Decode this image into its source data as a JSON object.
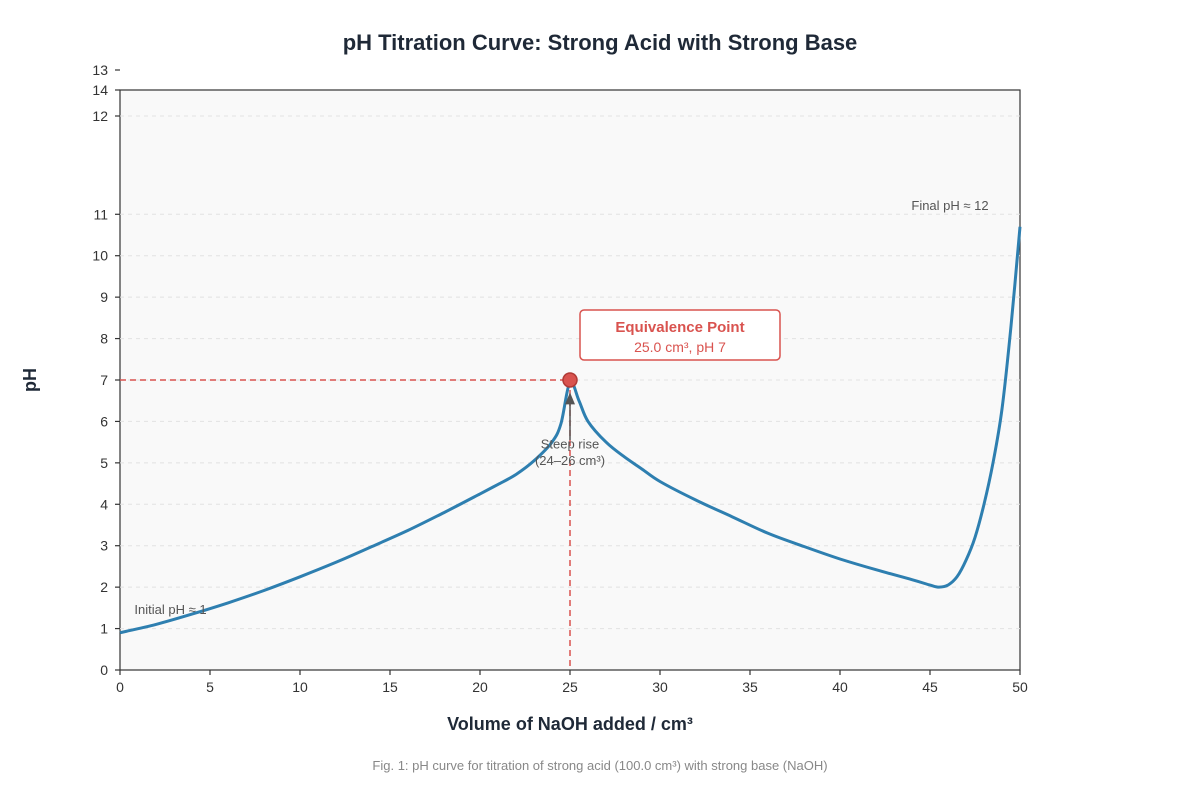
{
  "chart_data": {
    "type": "line",
    "title": "pH Titration Curve: Strong Acid with Strong Base",
    "xlabel": "Volume of NaOH added / cm³",
    "ylabel": "pH",
    "xlim": [
      0,
      50
    ],
    "ylim": [
      0,
      14
    ],
    "x_ticks": [
      0,
      5,
      10,
      15,
      20,
      25,
      30,
      35,
      40,
      45,
      50
    ],
    "y_ticks": [
      0,
      1,
      2,
      3,
      4,
      5,
      6,
      7,
      8,
      9,
      10,
      11,
      12,
      13,
      14
    ],
    "grid": true,
    "series": [
      {
        "color": "#2e7fb0",
        "points": [
          [
            0,
            0.9
          ],
          [
            2,
            1.1
          ],
          [
            4,
            1.35
          ],
          [
            6,
            1.62
          ],
          [
            8,
            1.92
          ],
          [
            10,
            2.25
          ],
          [
            12,
            2.6
          ],
          [
            14,
            2.98
          ],
          [
            16,
            3.37
          ],
          [
            18,
            3.8
          ],
          [
            20,
            4.25
          ],
          [
            21,
            4.48
          ],
          [
            22,
            4.72
          ],
          [
            23,
            5.05
          ],
          [
            24,
            5.5
          ],
          [
            24.5,
            5.95
          ],
          [
            25,
            6.95
          ],
          [
            25.5,
            6.5
          ],
          [
            26,
            6.0
          ],
          [
            27,
            5.5
          ],
          [
            28,
            5.15
          ],
          [
            29,
            4.85
          ],
          [
            30,
            4.55
          ],
          [
            32,
            4.1
          ],
          [
            34,
            3.7
          ],
          [
            36,
            3.3
          ],
          [
            38,
            2.98
          ],
          [
            40,
            2.68
          ],
          [
            42,
            2.42
          ],
          [
            44,
            2.18
          ],
          [
            45,
            2.05
          ],
          [
            45.5,
            2.0
          ],
          [
            46,
            2.05
          ],
          [
            46.5,
            2.25
          ],
          [
            47,
            2.65
          ],
          [
            47.5,
            3.2
          ],
          [
            48,
            4.0
          ],
          [
            48.5,
            5.0
          ],
          [
            49,
            6.3
          ],
          [
            49.5,
            8.3
          ],
          [
            50,
            10.7
          ]
        ]
      }
    ],
    "equivalence_point": {
      "x": 25,
      "y": 7,
      "label": "Equivalence Point",
      "detail": "25.0 cm³, pH 7",
      "color": "#d9534f"
    },
    "annotations": [
      {
        "text": "Initial pH ≈ 1",
        "x": 0.8,
        "y": 1.35
      },
      {
        "text": "Steep rise",
        "x": 25,
        "y": 5.35
      },
      {
        "text": "(24–26 cm³)",
        "x": 25,
        "y": 4.95
      },
      {
        "text": "Final pH ≈ 12",
        "x": 46,
        "y": 11.1
      }
    ],
    "caption": "Fig. 1: pH curve for titration of strong acid (100.0 cm³) with strong base (NaOH)"
  }
}
